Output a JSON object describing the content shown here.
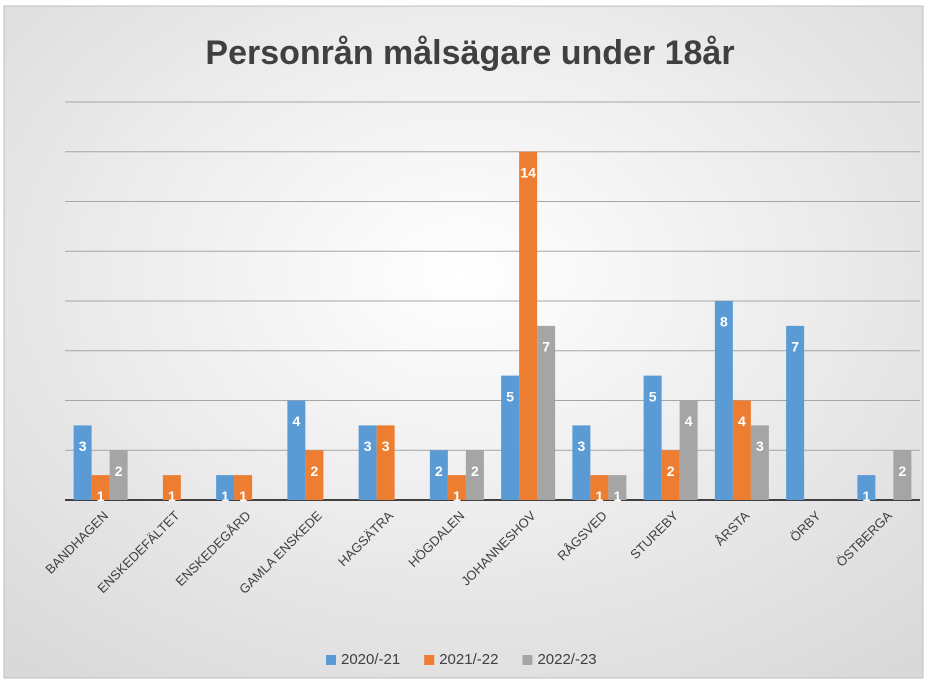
{
  "chart_data": {
    "type": "bar",
    "title": "Personrån målsägare under 18år",
    "categories": [
      "BANDHAGEN",
      "ENSKEDEFÄLTET",
      "ENSKEDEGÅRD",
      "GAMLA ENSKEDE",
      "HAGSÄTRA",
      "HÖGDALEN",
      "JOHANNESHOV",
      "RÅGSVED",
      "STUREBY",
      "ÅRSTA",
      "ÖRBY",
      "ÖSTBERGA"
    ],
    "series": [
      {
        "name": "2020/-21",
        "color": "#5b9bd5",
        "values": [
          3,
          null,
          1,
          4,
          3,
          2,
          5,
          3,
          5,
          8,
          7,
          1
        ]
      },
      {
        "name": "2021/-22",
        "color": "#ed7d31",
        "values": [
          1,
          1,
          1,
          2,
          3,
          1,
          14,
          1,
          2,
          4,
          null,
          null
        ]
      },
      {
        "name": "2022/-23",
        "color": "#a5a5a5",
        "values": [
          2,
          null,
          null,
          null,
          null,
          2,
          7,
          1,
          4,
          3,
          null,
          2
        ]
      }
    ],
    "ylim": [
      0,
      16
    ],
    "yticks": [
      0,
      2,
      4,
      6,
      8,
      10,
      12,
      14,
      16
    ],
    "grid": true,
    "legend": "bottom"
  }
}
